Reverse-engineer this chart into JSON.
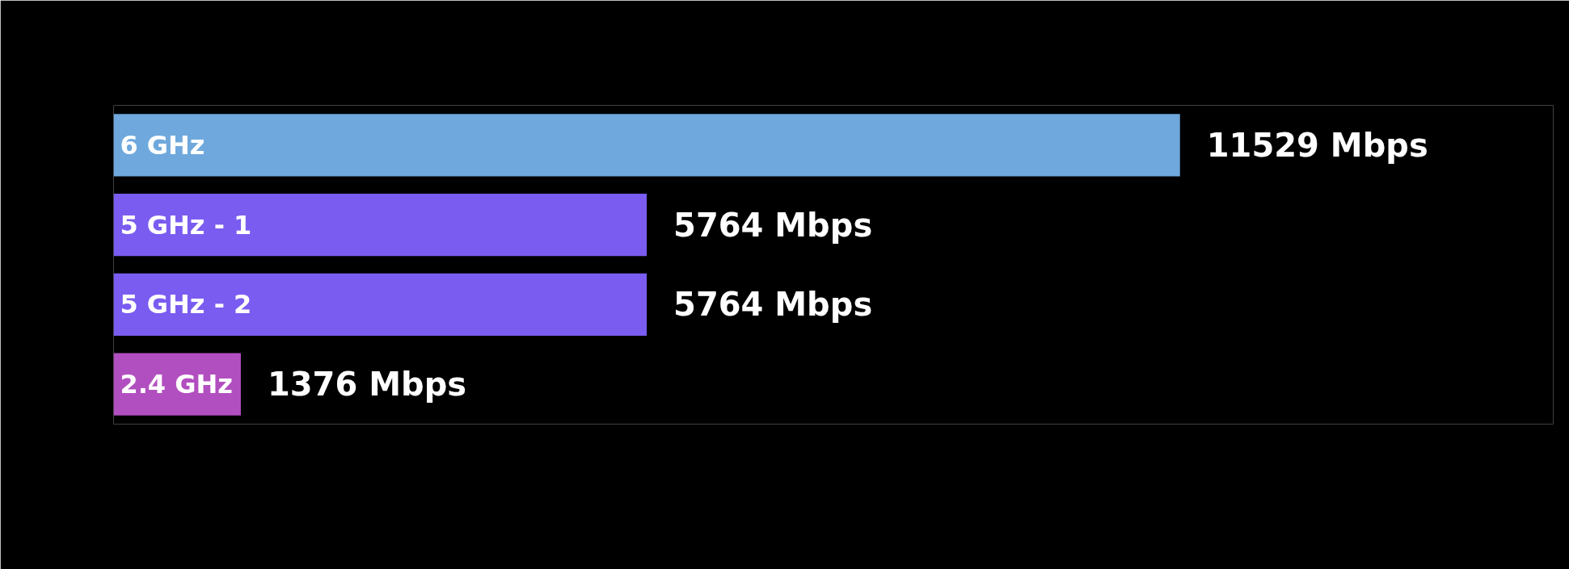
{
  "chart_data": {
    "type": "bar",
    "orientation": "horizontal",
    "categories": [
      "6 GHz",
      "5 GHz - 1",
      "5 GHz - 2",
      "2.4 GHz"
    ],
    "values": [
      11529,
      5764,
      5764,
      1376
    ],
    "colors": [
      "#6fa8dc",
      "#7a5cf0",
      "#7a5cf0",
      "#b24fc0"
    ],
    "value_labels": [
      "11529 Mbps",
      "5764 Mbps",
      "5764 Mbps",
      "1376 Mbps"
    ]
  }
}
